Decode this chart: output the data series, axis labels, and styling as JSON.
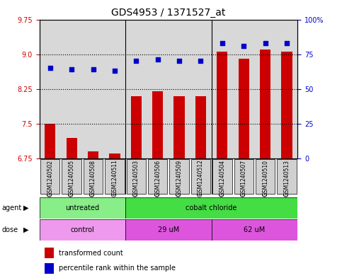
{
  "title": "GDS4953 / 1371527_at",
  "samples": [
    "GSM1240502",
    "GSM1240505",
    "GSM1240508",
    "GSM1240511",
    "GSM1240503",
    "GSM1240506",
    "GSM1240509",
    "GSM1240512",
    "GSM1240504",
    "GSM1240507",
    "GSM1240510",
    "GSM1240513"
  ],
  "transformed_count": [
    7.5,
    7.2,
    6.9,
    6.85,
    8.1,
    8.2,
    8.1,
    8.1,
    9.05,
    8.9,
    9.1,
    9.05
  ],
  "percentile_rank": [
    65,
    64,
    64,
    63,
    70,
    71,
    70,
    70,
    83,
    81,
    83,
    83
  ],
  "ylim_left": [
    6.75,
    9.75
  ],
  "ylim_right": [
    0,
    100
  ],
  "yticks_left": [
    6.75,
    7.5,
    8.25,
    9.0,
    9.75
  ],
  "yticks_right": [
    0,
    25,
    50,
    75,
    100
  ],
  "ytick_labels_right": [
    "0",
    "25",
    "50",
    "75",
    "100%"
  ],
  "bar_color": "#cc0000",
  "dot_color": "#0000cc",
  "agent_groups": [
    {
      "label": "untreated",
      "start": 0,
      "end": 4,
      "color": "#88ee88"
    },
    {
      "label": "cobalt chloride",
      "start": 4,
      "end": 12,
      "color": "#44dd44"
    }
  ],
  "dose_groups": [
    {
      "label": "control",
      "start": 0,
      "end": 4,
      "color": "#ee99ee"
    },
    {
      "label": "29 uM",
      "start": 4,
      "end": 8,
      "color": "#dd55dd"
    },
    {
      "label": "62 uM",
      "start": 8,
      "end": 12,
      "color": "#dd55dd"
    }
  ],
  "legend_bar_color": "#cc0000",
  "legend_dot_color": "#0000cc",
  "legend_bar_label": "transformed count",
  "legend_dot_label": "percentile rank within the sample",
  "hlines": [
    7.5,
    8.25,
    9.0
  ],
  "title_fontsize": 10,
  "tick_fontsize": 7,
  "label_fontsize": 7,
  "bar_width": 0.5,
  "dot_size": 18,
  "sep_lines": [
    3.5,
    7.5
  ],
  "dose_sep_lines": [
    3.5,
    7.5
  ]
}
